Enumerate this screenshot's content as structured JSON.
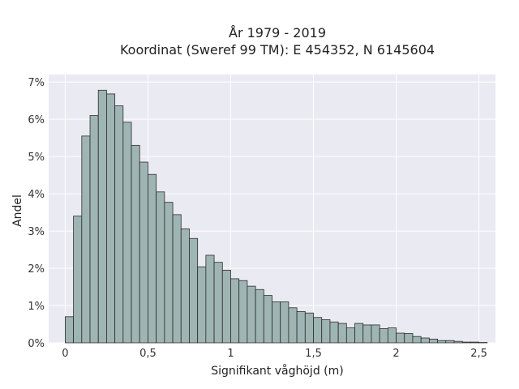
{
  "chart_data": {
    "type": "bar",
    "title": "År 1979 - 2019",
    "subtitle": "Koordinat (Sweref 99 TM): E 454352, N 6145604",
    "xlabel": "Signifikant våghöjd (m)",
    "ylabel": "Andel",
    "xlim": [
      -0.1,
      2.6
    ],
    "ylim": [
      0,
      7.2
    ],
    "x_ticks": [
      {
        "value": 0,
        "label": "0"
      },
      {
        "value": 0.5,
        "label": "0,5"
      },
      {
        "value": 1,
        "label": "1"
      },
      {
        "value": 1.5,
        "label": "1,5"
      },
      {
        "value": 2,
        "label": "2"
      },
      {
        "value": 2.5,
        "label": "2,5"
      }
    ],
    "y_ticks": [
      {
        "value": 0,
        "label": "0%"
      },
      {
        "value": 1,
        "label": "1%"
      },
      {
        "value": 2,
        "label": "2%"
      },
      {
        "value": 3,
        "label": "3%"
      },
      {
        "value": 4,
        "label": "4%"
      },
      {
        "value": 5,
        "label": "5%"
      },
      {
        "value": 6,
        "label": "6%"
      },
      {
        "value": 7,
        "label": "7%"
      }
    ],
    "grid": true,
    "bin_width": 0.05,
    "bin_start": 0,
    "values": [
      0.7,
      3.4,
      5.55,
      6.1,
      6.78,
      6.68,
      6.36,
      5.92,
      5.3,
      4.85,
      4.52,
      4.05,
      3.77,
      3.44,
      3.06,
      2.8,
      2.04,
      2.35,
      2.16,
      1.95,
      1.72,
      1.67,
      1.52,
      1.43,
      1.27,
      1.1,
      1.1,
      0.94,
      0.84,
      0.8,
      0.68,
      0.62,
      0.56,
      0.52,
      0.4,
      0.52,
      0.48,
      0.48,
      0.38,
      0.4,
      0.26,
      0.25,
      0.17,
      0.13,
      0.1,
      0.06,
      0.06,
      0.04,
      0.02,
      0.02,
      0.01
    ],
    "colors": {
      "plot_background": "#eaeaf2",
      "bar_fill": "#9fb5b3",
      "bar_edge": "#2b2b2b",
      "grid": "#ffffff"
    }
  }
}
